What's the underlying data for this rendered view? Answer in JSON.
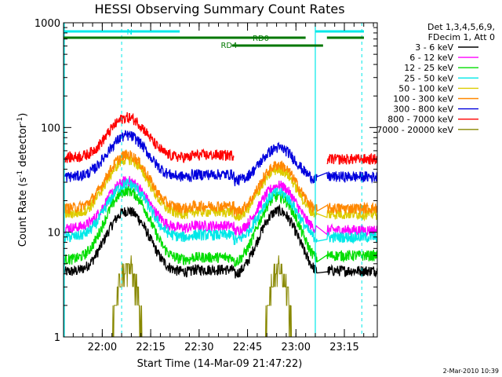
{
  "chart_data": {
    "type": "line",
    "title": "HESSI Observing Summary Count Rates",
    "xlabel": "Start Time (14-Mar-09 21:47:22)",
    "ylabel_main": "Count Rate (s",
    "ylabel_sup1": "-1",
    "ylabel_mid": " detector",
    "ylabel_sup2": "-1",
    "ylabel_end": ")",
    "y_scale": "log",
    "ylim": [
      1,
      1000
    ],
    "xlim_minutes": [
      21.8,
      23.42
    ],
    "x_ticks": [
      {
        "label": "22:00",
        "value": 22.0
      },
      {
        "label": "22:15",
        "value": 22.25
      },
      {
        "label": "22:30",
        "value": 22.5
      },
      {
        "label": "22:45",
        "value": 22.75
      },
      {
        "label": "23:00",
        "value": 23.0
      },
      {
        "label": "23:15",
        "value": 23.25
      }
    ],
    "y_ticks": [
      {
        "label": "1",
        "value": 1
      },
      {
        "label": "10",
        "value": 10
      },
      {
        "label": "100",
        "value": 100
      },
      {
        "label": "1000",
        "value": 1000
      }
    ],
    "legend_header": [
      "Det 1,3,4,5,6,9,",
      "FDecim 1, Att 0"
    ],
    "legend_position": "right",
    "series": [
      {
        "name": "3 - 6 keV",
        "color": "#000000",
        "base": 4.2,
        "peak1": 16,
        "peak2": 16,
        "after": 4.3
      },
      {
        "name": "6 - 12 keV",
        "color": "#ff00ff",
        "base": 11,
        "peak1": 31,
        "peak2": 28,
        "after": 10.5
      },
      {
        "name": "12 - 25 keV",
        "color": "#00dd00",
        "base": 5.5,
        "peak1": 25,
        "peak2": 22,
        "after": 6
      },
      {
        "name": "25 - 50 keV",
        "color": "#00e8e8",
        "base": 9,
        "peak1": 29,
        "peak2": 24,
        "after": 9
      },
      {
        "name": "50 - 100 keV",
        "color": "#ddcc00",
        "base": 15,
        "peak1": 50,
        "peak2": 40,
        "after": 15
      },
      {
        "name": "100 - 300 keV",
        "color": "#ff8800",
        "base": 17,
        "peak1": 55,
        "peak2": 44,
        "after": 17
      },
      {
        "name": "300 - 800 keV",
        "color": "#0000dd",
        "base": 34,
        "peak1": 84,
        "peak2": 64,
        "after": 34
      },
      {
        "name": "800 - 7000 keV",
        "color": "#ff0000",
        "base": 52,
        "peak1": 125,
        "peak2": 0,
        "after": 50
      },
      {
        "name": "7000 - 20000 keV",
        "color": "#888800",
        "base": 1,
        "peak1": 5,
        "peak2": 5,
        "after": 1
      }
    ],
    "flag_bars": [
      {
        "label": "N",
        "color": "#00e8e8"
      },
      {
        "label": "RD0",
        "color": "#007700"
      },
      {
        "label": "RD4",
        "color": "#007700"
      }
    ],
    "timestamp": "2-Mar-2010 10:39"
  }
}
